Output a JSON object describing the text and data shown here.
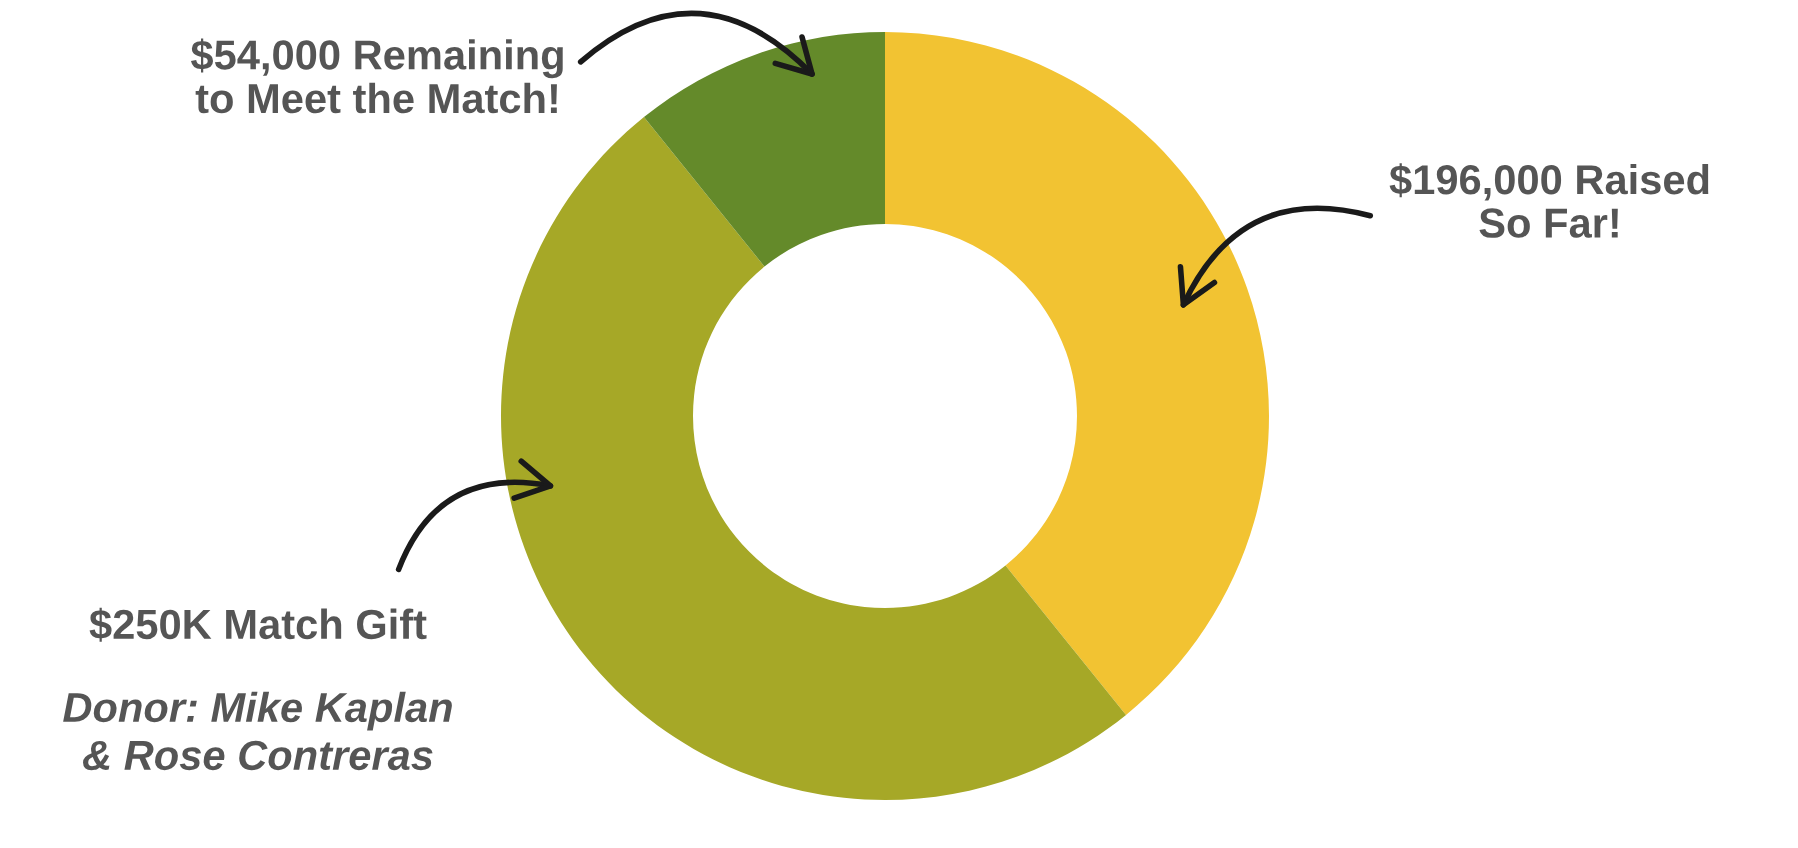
{
  "chart_data": {
    "type": "donut",
    "categories": [
      "$196,000 Raised\nSo Far!",
      "$250K Match Gift",
      "$54,000 Remaining\nto Meet the Match!"
    ],
    "values": [
      196000,
      250000,
      54000
    ],
    "colors": [
      "#f2c332",
      "#a6a827",
      "#648a2a"
    ],
    "annotations": [
      "Donor: Mike Kaplan\n& Rose Contreras"
    ]
  }
}
